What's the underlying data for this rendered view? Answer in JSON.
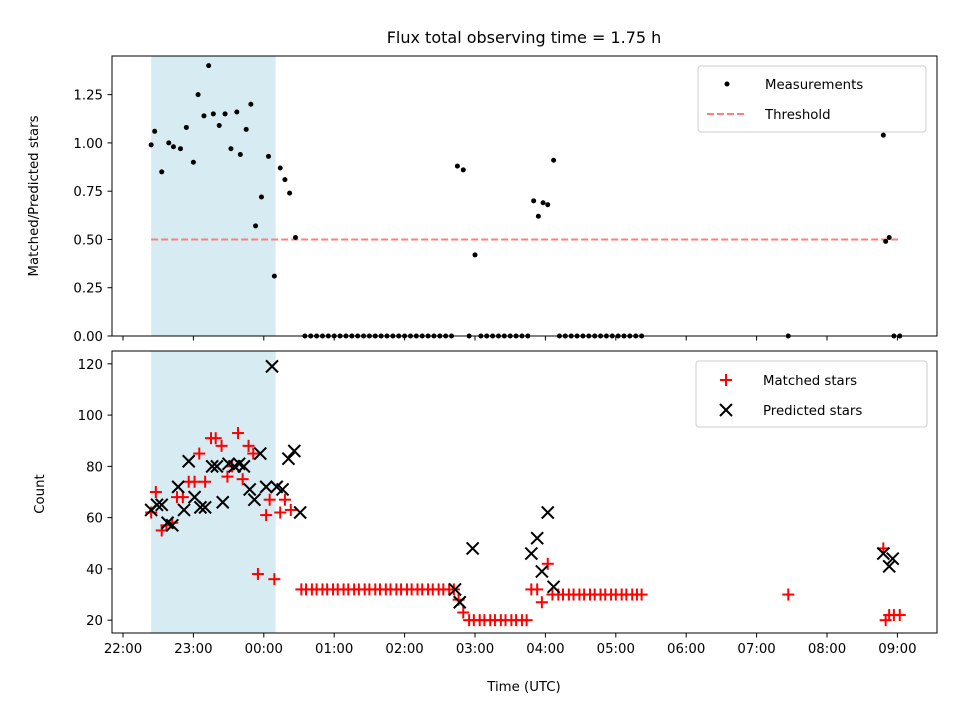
{
  "figure": {
    "title": "Flux total observing time = 1.75 h"
  },
  "chart_data": [
    {
      "type": "scatter",
      "ylabel": "Matched/Predicted stars",
      "xlim": [
        "22:00",
        "09:35"
      ],
      "ylim": [
        0,
        1.45
      ],
      "y_ticks": [
        "0.00",
        "0.25",
        "0.50",
        "0.75",
        "1.00",
        "1.25"
      ],
      "grid": false,
      "legend_position": "top-right",
      "shaded_interval": [
        "22:24",
        "00:10"
      ],
      "threshold": 0.5,
      "threshold_range": [
        "22:24",
        "09:03"
      ],
      "series": [
        {
          "name": "Measurements",
          "color": "#000000",
          "marker": "dot",
          "points": [
            [
              "22:24",
              0.99
            ],
            [
              "22:27",
              1.06
            ],
            [
              "22:33",
              0.85
            ],
            [
              "22:39",
              1.0
            ],
            [
              "22:43",
              0.98
            ],
            [
              "22:49",
              0.97
            ],
            [
              "22:54",
              1.08
            ],
            [
              "23:00",
              0.9
            ],
            [
              "23:04",
              1.25
            ],
            [
              "23:09",
              1.14
            ],
            [
              "23:13",
              1.4
            ],
            [
              "23:17",
              1.15
            ],
            [
              "23:22",
              1.09
            ],
            [
              "23:27",
              1.15
            ],
            [
              "23:32",
              0.97
            ],
            [
              "23:37",
              1.16
            ],
            [
              "23:40",
              0.94
            ],
            [
              "23:45",
              1.07
            ],
            [
              "23:49",
              1.2
            ],
            [
              "23:53",
              0.57
            ],
            [
              "23:58",
              0.72
            ],
            [
              "00:04",
              0.93
            ],
            [
              "00:09",
              0.31
            ],
            [
              "00:14",
              0.87
            ],
            [
              "00:18",
              0.81
            ],
            [
              "00:22",
              0.74
            ],
            [
              "00:27",
              0.51
            ],
            [
              "00:35",
              0.0
            ],
            [
              "00:40",
              0.0
            ],
            [
              "00:45",
              0.0
            ],
            [
              "00:50",
              0.0
            ],
            [
              "00:55",
              0.0
            ],
            [
              "01:00",
              0.0
            ],
            [
              "01:05",
              0.0
            ],
            [
              "01:10",
              0.0
            ],
            [
              "01:15",
              0.0
            ],
            [
              "01:20",
              0.0
            ],
            [
              "01:25",
              0.0
            ],
            [
              "01:30",
              0.0
            ],
            [
              "01:35",
              0.0
            ],
            [
              "01:40",
              0.0
            ],
            [
              "01:45",
              0.0
            ],
            [
              "01:50",
              0.0
            ],
            [
              "01:55",
              0.0
            ],
            [
              "02:00",
              0.0
            ],
            [
              "02:05",
              0.0
            ],
            [
              "02:10",
              0.0
            ],
            [
              "02:15",
              0.0
            ],
            [
              "02:20",
              0.0
            ],
            [
              "02:25",
              0.0
            ],
            [
              "02:30",
              0.0
            ],
            [
              "02:35",
              0.0
            ],
            [
              "02:40",
              0.0
            ],
            [
              "02:45",
              0.88
            ],
            [
              "02:50",
              0.86
            ],
            [
              "02:55",
              0.0
            ],
            [
              "03:00",
              0.42
            ],
            [
              "03:05",
              0.0
            ],
            [
              "03:10",
              0.0
            ],
            [
              "03:15",
              0.0
            ],
            [
              "03:20",
              0.0
            ],
            [
              "03:25",
              0.0
            ],
            [
              "03:30",
              0.0
            ],
            [
              "03:35",
              0.0
            ],
            [
              "03:40",
              0.0
            ],
            [
              "03:45",
              0.0
            ],
            [
              "03:50",
              0.7
            ],
            [
              "03:54",
              0.62
            ],
            [
              "03:58",
              0.69
            ],
            [
              "04:02",
              0.68
            ],
            [
              "04:07",
              0.91
            ],
            [
              "04:12",
              0.0
            ],
            [
              "04:17",
              0.0
            ],
            [
              "04:22",
              0.0
            ],
            [
              "04:27",
              0.0
            ],
            [
              "04:32",
              0.0
            ],
            [
              "04:37",
              0.0
            ],
            [
              "04:42",
              0.0
            ],
            [
              "04:47",
              0.0
            ],
            [
              "04:52",
              0.0
            ],
            [
              "04:57",
              0.0
            ],
            [
              "05:02",
              0.0
            ],
            [
              "05:07",
              0.0
            ],
            [
              "05:12",
              0.0
            ],
            [
              "05:17",
              0.0
            ],
            [
              "05:22",
              0.0
            ],
            [
              "07:27",
              0.0
            ],
            [
              "08:48",
              1.04
            ],
            [
              "08:50",
              0.49
            ],
            [
              "08:53",
              0.51
            ],
            [
              "08:57",
              0.0
            ],
            [
              "09:02",
              0.0
            ]
          ]
        },
        {
          "name": "Threshold",
          "color": "#ff7f7f",
          "style": "dashed"
        }
      ]
    },
    {
      "type": "scatter",
      "xlabel": "Time (UTC)",
      "ylabel": "Count",
      "xlim": [
        "22:00",
        "09:35"
      ],
      "ylim": [
        15,
        125
      ],
      "x_ticks": [
        "22:00",
        "23:00",
        "00:00",
        "01:00",
        "02:00",
        "03:00",
        "04:00",
        "05:00",
        "06:00",
        "07:00",
        "08:00",
        "09:00"
      ],
      "y_ticks": [
        "20",
        "40",
        "60",
        "80",
        "100",
        "120"
      ],
      "grid": false,
      "legend_position": "top-right",
      "shaded_interval": [
        "22:24",
        "00:10"
      ],
      "series": [
        {
          "name": "Matched stars",
          "color": "#ff0000",
          "marker": "plus",
          "points": [
            [
              "22:24",
              62
            ],
            [
              "22:28",
              70
            ],
            [
              "22:33",
              55
            ],
            [
              "22:37",
              57
            ],
            [
              "22:42",
              58
            ],
            [
              "22:46",
              68
            ],
            [
              "22:51",
              68
            ],
            [
              "22:56",
              74
            ],
            [
              "23:01",
              74
            ],
            [
              "23:05",
              85
            ],
            [
              "23:10",
              74
            ],
            [
              "23:15",
              91
            ],
            [
              "23:19",
              91
            ],
            [
              "23:24",
              88
            ],
            [
              "23:29",
              76
            ],
            [
              "23:33",
              80
            ],
            [
              "23:38",
              93
            ],
            [
              "23:42",
              75
            ],
            [
              "23:47",
              88
            ],
            [
              "23:51",
              85
            ],
            [
              "23:55",
              38
            ],
            [
              "00:02",
              61
            ],
            [
              "00:05",
              67
            ],
            [
              "00:09",
              36
            ],
            [
              "00:14",
              62
            ],
            [
              "00:18",
              67
            ],
            [
              "00:23",
              63
            ],
            [
              "00:32",
              32
            ],
            [
              "00:36",
              32
            ],
            [
              "00:41",
              32
            ],
            [
              "00:45",
              32
            ],
            [
              "00:50",
              32
            ],
            [
              "00:54",
              32
            ],
            [
              "00:59",
              32
            ],
            [
              "01:03",
              32
            ],
            [
              "01:08",
              32
            ],
            [
              "01:12",
              32
            ],
            [
              "01:17",
              32
            ],
            [
              "01:21",
              32
            ],
            [
              "01:26",
              32
            ],
            [
              "01:30",
              32
            ],
            [
              "01:35",
              32
            ],
            [
              "01:39",
              32
            ],
            [
              "01:44",
              32
            ],
            [
              "01:48",
              32
            ],
            [
              "01:53",
              32
            ],
            [
              "01:57",
              32
            ],
            [
              "02:02",
              32
            ],
            [
              "02:06",
              32
            ],
            [
              "02:11",
              32
            ],
            [
              "02:15",
              32
            ],
            [
              "02:20",
              32
            ],
            [
              "02:24",
              32
            ],
            [
              "02:29",
              32
            ],
            [
              "02:33",
              32
            ],
            [
              "02:38",
              32
            ],
            [
              "02:42",
              32
            ],
            [
              "02:46",
              28
            ],
            [
              "02:50",
              23
            ],
            [
              "02:55",
              20
            ],
            [
              "02:59",
              20
            ],
            [
              "03:04",
              20
            ],
            [
              "03:08",
              20
            ],
            [
              "03:13",
              20
            ],
            [
              "03:17",
              20
            ],
            [
              "03:22",
              20
            ],
            [
              "03:26",
              20
            ],
            [
              "03:31",
              20
            ],
            [
              "03:35",
              20
            ],
            [
              "03:40",
              20
            ],
            [
              "03:44",
              20
            ],
            [
              "03:48",
              32
            ],
            [
              "03:53",
              32
            ],
            [
              "03:57",
              27
            ],
            [
              "04:02",
              42
            ],
            [
              "04:06",
              30
            ],
            [
              "04:11",
              30
            ],
            [
              "04:15",
              30
            ],
            [
              "04:20",
              30
            ],
            [
              "04:24",
              30
            ],
            [
              "04:29",
              30
            ],
            [
              "04:33",
              30
            ],
            [
              "04:38",
              30
            ],
            [
              "04:42",
              30
            ],
            [
              "04:47",
              30
            ],
            [
              "04:51",
              30
            ],
            [
              "04:56",
              30
            ],
            [
              "05:00",
              30
            ],
            [
              "05:05",
              30
            ],
            [
              "05:09",
              30
            ],
            [
              "05:14",
              30
            ],
            [
              "05:18",
              30
            ],
            [
              "05:22",
              30
            ],
            [
              "07:27",
              30
            ],
            [
              "08:48",
              48
            ],
            [
              "08:50",
              20
            ],
            [
              "08:53",
              22
            ],
            [
              "08:57",
              22
            ],
            [
              "09:02",
              22
            ]
          ]
        },
        {
          "name": "Predicted stars",
          "color": "#000000",
          "marker": "x",
          "points": [
            [
              "22:24",
              63
            ],
            [
              "22:29",
              65
            ],
            [
              "22:33",
              65
            ],
            [
              "22:38",
              58
            ],
            [
              "22:42",
              57
            ],
            [
              "22:47",
              72
            ],
            [
              "22:52",
              63
            ],
            [
              "22:56",
              82
            ],
            [
              "23:01",
              68
            ],
            [
              "23:06",
              64
            ],
            [
              "23:10",
              64
            ],
            [
              "23:16",
              80
            ],
            [
              "23:20",
              80
            ],
            [
              "23:25",
              66
            ],
            [
              "23:30",
              81
            ],
            [
              "23:35",
              80
            ],
            [
              "23:39",
              81
            ],
            [
              "23:43",
              80
            ],
            [
              "23:48",
              71
            ],
            [
              "23:52",
              67
            ],
            [
              "23:57",
              85
            ],
            [
              "00:02",
              72
            ],
            [
              "00:07",
              119
            ],
            [
              "00:11",
              72
            ],
            [
              "00:16",
              71
            ],
            [
              "00:21",
              83
            ],
            [
              "00:26",
              86
            ],
            [
              "00:31",
              62
            ],
            [
              "02:43",
              32
            ],
            [
              "02:47",
              27
            ],
            [
              "02:58",
              48
            ],
            [
              "03:48",
              46
            ],
            [
              "03:53",
              52
            ],
            [
              "03:57",
              39
            ],
            [
              "04:02",
              62
            ],
            [
              "04:07",
              33
            ],
            [
              "08:48",
              46
            ],
            [
              "08:53",
              41
            ],
            [
              "08:56",
              44
            ]
          ]
        }
      ]
    }
  ]
}
